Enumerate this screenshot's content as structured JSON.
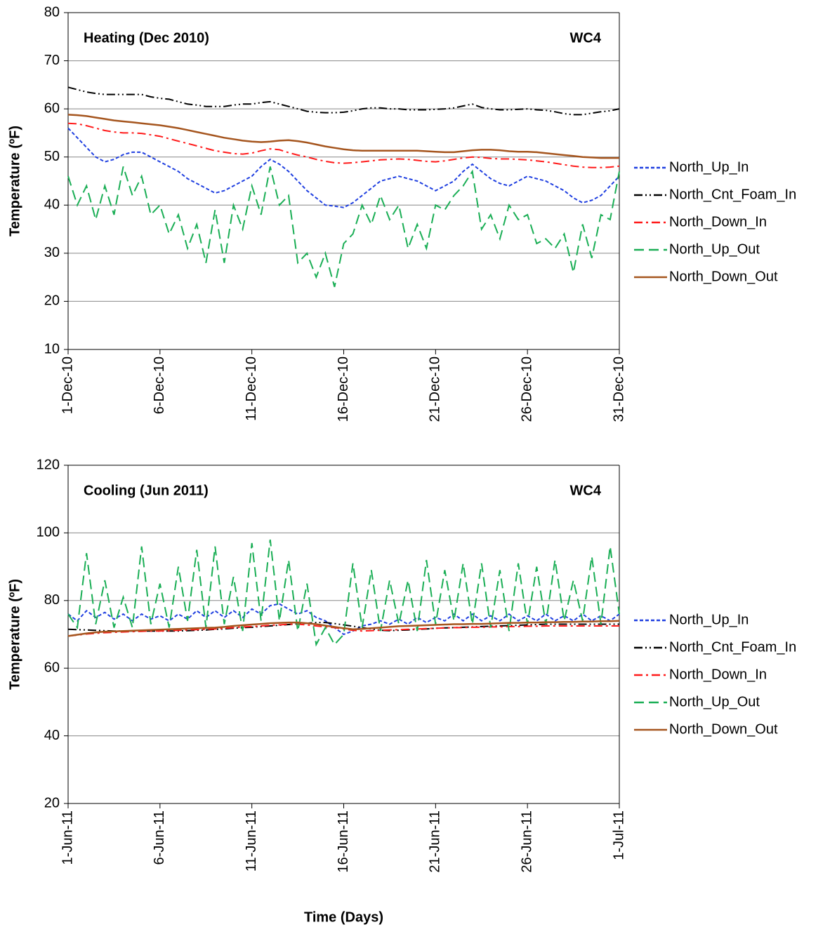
{
  "chart_data": [
    {
      "type": "line",
      "annotation": "Heating (Dec 2010)",
      "label": "WC4",
      "ylabel": "Temperature (ºF)",
      "xlim": [
        1,
        31
      ],
      "ylim": [
        10,
        80
      ],
      "yticks": [
        10,
        20,
        30,
        40,
        50,
        60,
        70,
        80
      ],
      "grid": true,
      "legend": "right",
      "xticks": [
        {
          "value": 1,
          "label": "1-Dec-10"
        },
        {
          "value": 6,
          "label": "6-Dec-10"
        },
        {
          "value": 11,
          "label": "11-Dec-10"
        },
        {
          "value": 16,
          "label": "16-Dec-10"
        },
        {
          "value": 21,
          "label": "21-Dec-10"
        },
        {
          "value": 26,
          "label": "26-Dec-10"
        },
        {
          "value": 31,
          "label": "31-Dec-10"
        }
      ],
      "x": [
        1,
        1.5,
        2,
        2.5,
        3,
        3.5,
        4,
        4.5,
        5,
        5.5,
        6,
        6.5,
        7,
        7.5,
        8,
        8.5,
        9,
        9.5,
        10,
        10.5,
        11,
        11.5,
        12,
        12.5,
        13,
        13.5,
        14,
        14.5,
        15,
        15.5,
        16,
        16.5,
        17,
        17.5,
        18,
        18.5,
        19,
        19.5,
        20,
        20.5,
        21,
        21.5,
        22,
        22.5,
        23,
        23.5,
        24,
        24.5,
        25,
        25.5,
        26,
        26.5,
        27,
        27.5,
        28,
        28.5,
        29,
        29.5,
        30,
        30.5,
        31
      ],
      "series": [
        {
          "name": "North_Up_In",
          "color": "#1f3fe0",
          "style": "short-dash",
          "values": [
            56,
            54,
            52,
            50,
            49,
            49.5,
            50.5,
            51,
            51,
            50,
            49,
            48,
            47,
            45.5,
            44.5,
            43.5,
            42.5,
            43,
            44,
            45,
            46,
            48,
            49.5,
            48.5,
            47,
            45,
            43,
            41.5,
            40,
            39.8,
            39.5,
            40.5,
            42,
            43.5,
            45,
            45.5,
            46,
            45.5,
            45,
            44,
            43,
            44,
            45,
            47,
            48.5,
            47,
            45.5,
            44.5,
            44,
            45,
            46,
            45.5,
            45,
            44,
            43,
            41.5,
            40.5,
            41,
            42,
            44,
            46
          ]
        },
        {
          "name": "North_Cnt_Foam_In",
          "color": "#000000",
          "style": "dash-dot-dot",
          "values": [
            64.5,
            64,
            63.5,
            63.2,
            63,
            63,
            63,
            63,
            63,
            62.5,
            62.2,
            62,
            61.5,
            61,
            60.8,
            60.5,
            60.5,
            60.5,
            60.8,
            61,
            61,
            61.3,
            61.5,
            61,
            60.5,
            60,
            59.5,
            59.3,
            59.2,
            59.2,
            59.3,
            59.6,
            60,
            60.2,
            60.2,
            60,
            60,
            59.8,
            59.8,
            59.8,
            59.9,
            60,
            60.2,
            60.6,
            61,
            60.3,
            60,
            59.8,
            59.8,
            59.9,
            60,
            59.8,
            59.7,
            59.4,
            59,
            58.8,
            58.8,
            59.1,
            59.4,
            59.6,
            60
          ]
        },
        {
          "name": "North_Down_In",
          "color": "#ff1a1a",
          "style": "dash-dot",
          "values": [
            57,
            56.9,
            56.5,
            56,
            55.5,
            55.2,
            55,
            55,
            54.9,
            54.6,
            54.3,
            53.8,
            53.3,
            52.8,
            52.3,
            51.8,
            51.3,
            51,
            50.7,
            50.6,
            50.8,
            51.3,
            51.7,
            51.5,
            50.9,
            50.4,
            50,
            49.5,
            49.1,
            48.8,
            48.7,
            48.8,
            49,
            49.2,
            49.4,
            49.5,
            49.6,
            49.5,
            49.3,
            49.1,
            49,
            49.2,
            49.5,
            49.8,
            50,
            49.9,
            49.7,
            49.6,
            49.6,
            49.5,
            49.4,
            49.2,
            49,
            48.7,
            48.4,
            48.1,
            47.9,
            47.8,
            47.8,
            47.9,
            48.1
          ]
        },
        {
          "name": "North_Up_Out",
          "color": "#1aae55",
          "style": "long-dash",
          "values": [
            46,
            40,
            44,
            37,
            44,
            38,
            48,
            42,
            46,
            38,
            40,
            34,
            38,
            31,
            36,
            28,
            39,
            28,
            40,
            35,
            44,
            38,
            48,
            40,
            42,
            28,
            30,
            25,
            30,
            23,
            32,
            34,
            40,
            36,
            42,
            37,
            40,
            31,
            36,
            31,
            40,
            39,
            42,
            44,
            47,
            35,
            38,
            33,
            40,
            37,
            38,
            32,
            33,
            31,
            34,
            26,
            36,
            29,
            38,
            37,
            47
          ]
        },
        {
          "name": "North_Down_Out",
          "color": "#a5551e",
          "style": "solid",
          "values": [
            58.8,
            58.7,
            58.5,
            58.2,
            57.9,
            57.6,
            57.4,
            57.2,
            57,
            56.8,
            56.6,
            56.3,
            56,
            55.6,
            55.2,
            54.8,
            54.4,
            54,
            53.7,
            53.4,
            53.2,
            53.1,
            53.2,
            53.4,
            53.5,
            53.3,
            53,
            52.6,
            52.2,
            51.9,
            51.6,
            51.4,
            51.3,
            51.3,
            51.3,
            51.3,
            51.3,
            51.3,
            51.3,
            51.2,
            51.1,
            51,
            51,
            51.2,
            51.4,
            51.5,
            51.5,
            51.4,
            51.2,
            51.1,
            51.1,
            51,
            50.8,
            50.6,
            50.4,
            50.2,
            50,
            49.9,
            49.8,
            49.8,
            49.8
          ]
        }
      ]
    },
    {
      "type": "line",
      "annotation": "Cooling (Jun 2011)",
      "label": "WC4",
      "ylabel": "Temperature (ºF)",
      "xlabel": "Time (Days)",
      "xlim": [
        1,
        31
      ],
      "ylim": [
        20,
        120
      ],
      "yticks": [
        20,
        40,
        60,
        80,
        100,
        120
      ],
      "grid": true,
      "legend": "right",
      "xticks": [
        {
          "value": 1,
          "label": "1-Jun-11"
        },
        {
          "value": 6,
          "label": "6-Jun-11"
        },
        {
          "value": 11,
          "label": "11-Jun-11"
        },
        {
          "value": 16,
          "label": "16-Jun-11"
        },
        {
          "value": 21,
          "label": "21-Jun-11"
        },
        {
          "value": 26,
          "label": "26-Jun-11"
        },
        {
          "value": 31,
          "label": "1-Jul-11"
        }
      ],
      "x": [
        1,
        1.5,
        2,
        2.5,
        3,
        3.5,
        4,
        4.5,
        5,
        5.5,
        6,
        6.5,
        7,
        7.5,
        8,
        8.5,
        9,
        9.5,
        10,
        10.5,
        11,
        11.5,
        12,
        12.5,
        13,
        13.5,
        14,
        14.5,
        15,
        15.5,
        16,
        16.5,
        17,
        17.5,
        18,
        18.5,
        19,
        19.5,
        20,
        20.5,
        21,
        21.5,
        22,
        22.5,
        23,
        23.5,
        24,
        24.5,
        25,
        25.5,
        26,
        26.5,
        27,
        27.5,
        28,
        28.5,
        29,
        29.5,
        30,
        30.5,
        31
      ],
      "series": [
        {
          "name": "North_Up_In",
          "color": "#1f3fe0",
          "style": "short-dash",
          "values": [
            76,
            74,
            77,
            75,
            76.5,
            74.5,
            76,
            74,
            76,
            74.5,
            75.5,
            74,
            76,
            74.5,
            77,
            75,
            77,
            75,
            77,
            75,
            77.5,
            76,
            78.5,
            79,
            77.5,
            76,
            77,
            75,
            74,
            72,
            70,
            71,
            72.5,
            73,
            74,
            73,
            74.5,
            73,
            75,
            73.5,
            75,
            74,
            76,
            74,
            76,
            74,
            75.5,
            74,
            76,
            74,
            75.5,
            74,
            76,
            74,
            75.5,
            74,
            76,
            74,
            75.5,
            74,
            76
          ]
        },
        {
          "name": "North_Cnt_Foam_In",
          "color": "#000000",
          "style": "dash-dot-dot",
          "values": [
            71.5,
            71.4,
            71.3,
            71.2,
            71.1,
            71,
            71,
            71,
            71,
            71,
            71,
            71,
            71,
            71.1,
            71.2,
            71.3,
            71.5,
            71.6,
            71.8,
            72,
            72.1,
            72.3,
            72.5,
            72.7,
            72.9,
            73.1,
            73.3,
            73.5,
            73.5,
            73.2,
            72.8,
            72.4,
            72,
            71.6,
            71.2,
            71.1,
            71.2,
            71.3,
            71.5,
            71.6,
            71.8,
            71.9,
            72,
            72.1,
            72.2,
            72.3,
            72.4,
            72.5,
            72.6,
            72.7,
            72.8,
            72.9,
            73,
            73,
            73,
            73,
            73,
            73,
            73,
            73,
            73
          ]
        },
        {
          "name": "North_Down_In",
          "color": "#ff1a1a",
          "style": "dash-dot",
          "values": [
            69.5,
            69.8,
            70.1,
            70.3,
            70.5,
            70.6,
            70.7,
            70.8,
            70.9,
            71,
            71,
            71.1,
            71.2,
            71.3,
            71.4,
            71.5,
            71.6,
            71.8,
            72,
            72.2,
            72.3,
            72.5,
            72.7,
            72.8,
            73,
            73,
            72.8,
            72.5,
            72.2,
            72,
            71.6,
            71.2,
            71,
            71.1,
            71.2,
            71.3,
            71.4,
            71.5,
            71.6,
            71.7,
            71.8,
            71.9,
            72,
            72,
            72.1,
            72.1,
            72.2,
            72.2,
            72.3,
            72.3,
            72.4,
            72.4,
            72.5,
            72.5,
            72.5,
            72.5,
            72.5,
            72.5,
            72.5,
            72.5,
            72.5
          ]
        },
        {
          "name": "North_Up_Out",
          "color": "#1aae55",
          "style": "long-dash",
          "values": [
            76,
            72,
            94,
            73,
            86,
            72,
            81,
            72,
            96,
            73,
            85,
            72,
            90,
            74,
            95,
            72,
            96,
            73,
            87,
            71,
            97,
            74,
            98,
            74,
            92,
            71,
            85,
            67,
            72,
            67,
            70,
            91,
            72,
            89,
            71,
            86,
            73,
            86,
            71,
            92,
            73,
            89,
            74,
            91,
            73,
            91,
            72,
            89,
            71,
            91,
            73,
            90,
            73,
            92,
            74,
            86,
            74,
            93,
            73,
            96,
            76
          ]
        },
        {
          "name": "North_Down_Out",
          "color": "#a5551e",
          "style": "solid",
          "values": [
            69.5,
            69.9,
            70.3,
            70.6,
            70.8,
            70.9,
            71,
            71.1,
            71.2,
            71.3,
            71.4,
            71.5,
            71.6,
            71.7,
            71.8,
            71.9,
            72,
            72.2,
            72.5,
            72.7,
            72.9,
            73.1,
            73.3,
            73.4,
            73.5,
            73.5,
            73.3,
            73,
            72.6,
            72.2,
            71.8,
            71.5,
            71.6,
            71.8,
            72,
            72.2,
            72.4,
            72.5,
            72.6,
            72.7,
            72.8,
            72.9,
            73,
            73,
            73.1,
            73.1,
            73.2,
            73.3,
            73.4,
            73.4,
            73.5,
            73.5,
            73.6,
            73.6,
            73.7,
            73.7,
            73.8,
            73.8,
            73.9,
            73.9,
            74
          ]
        }
      ]
    }
  ]
}
